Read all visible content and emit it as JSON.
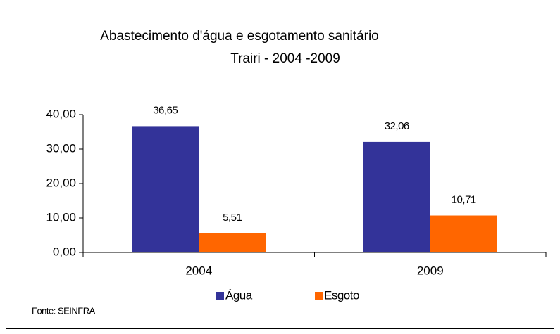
{
  "chart_data": {
    "type": "bar",
    "title": [
      "Abastecimento d'água e esgotamento sanitário",
      "Trairi - 2004 -2009"
    ],
    "categories": [
      "2004",
      "2009"
    ],
    "series": [
      {
        "name": "Água",
        "color": "#333399",
        "values": [
          36.65,
          32.06
        ],
        "value_labels": [
          "36,65",
          "32,06"
        ]
      },
      {
        "name": "Esgoto",
        "color": "#ff6600",
        "values": [
          5.51,
          10.71
        ],
        "value_labels": [
          "5,51",
          "10,71"
        ]
      }
    ],
    "ylim": [
      0,
      40
    ],
    "yticks": [
      {
        "value": 0,
        "label": "0,00"
      },
      {
        "value": 10,
        "label": "10,00"
      },
      {
        "value": 20,
        "label": "20,00"
      },
      {
        "value": 30,
        "label": "30,00"
      },
      {
        "value": 40,
        "label": "40,00"
      }
    ],
    "grid": false,
    "legend": "bottom",
    "source": "Fonte: SEINFRA"
  }
}
